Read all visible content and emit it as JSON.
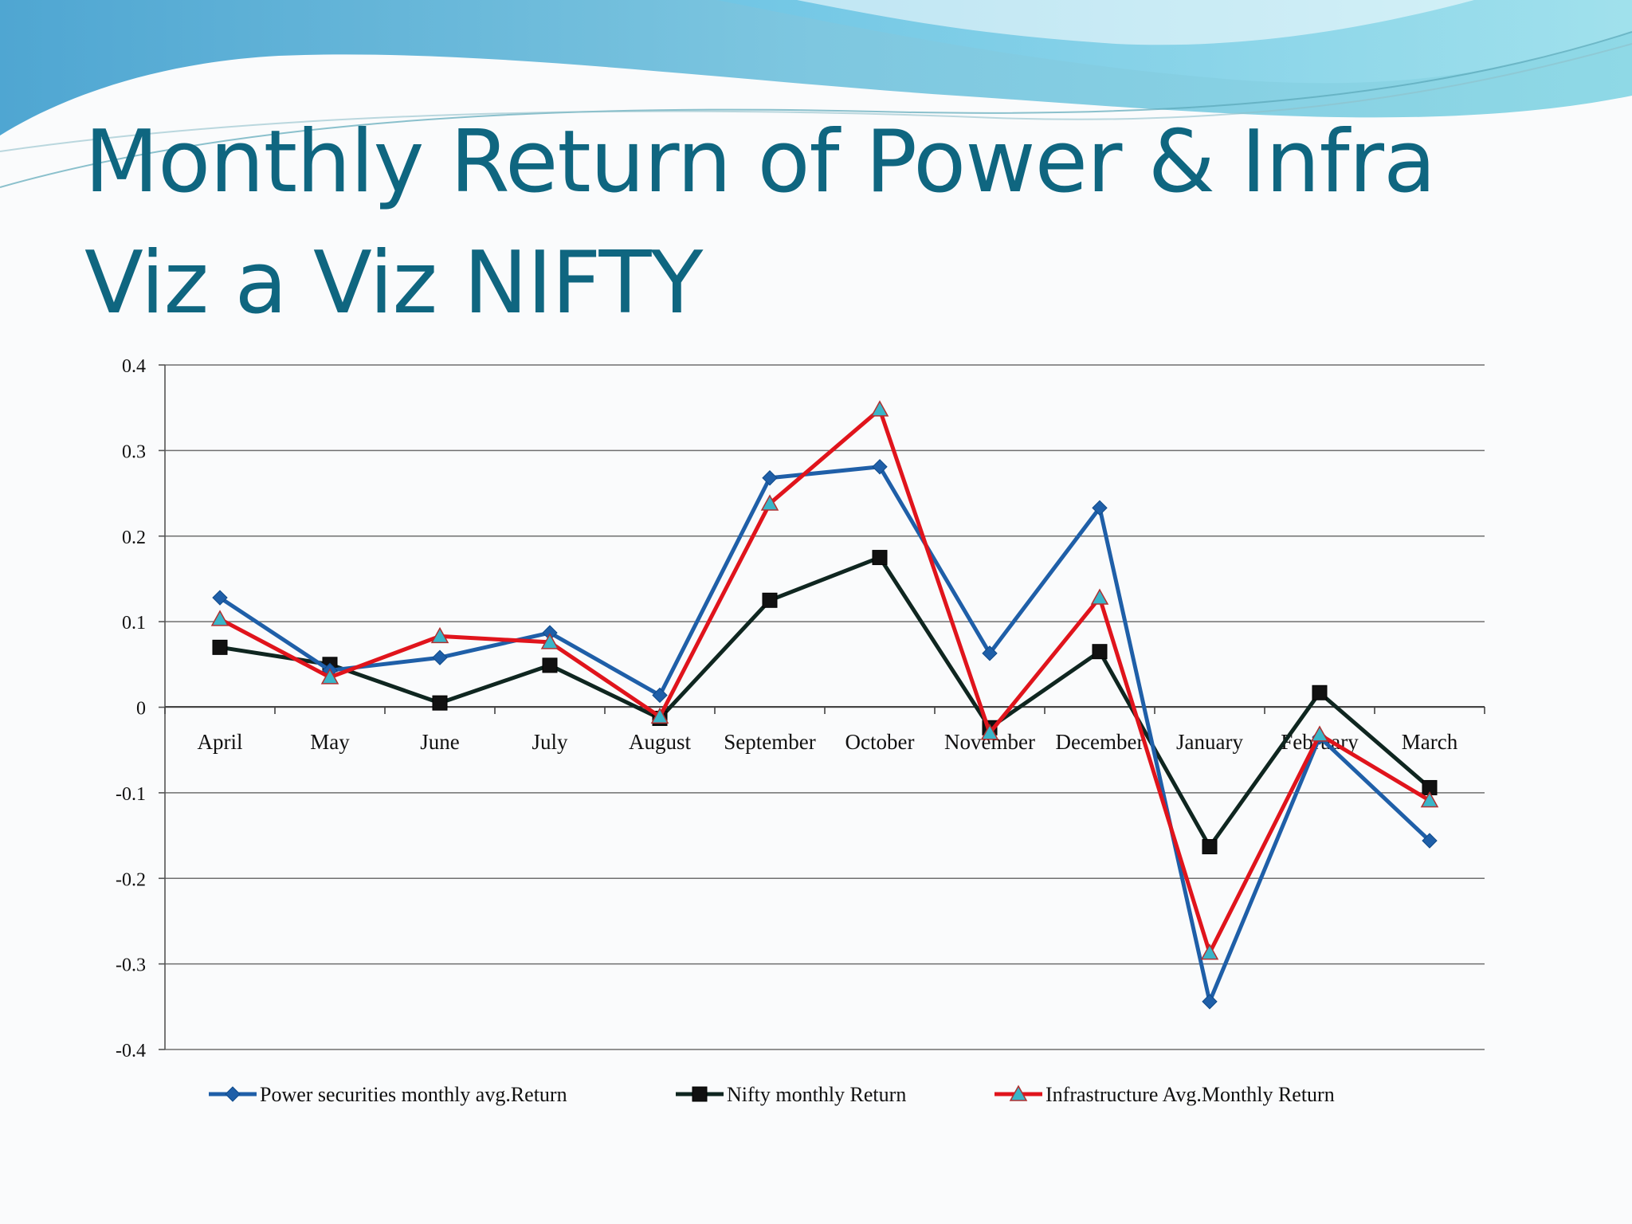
{
  "slide": {
    "title_line1": "Monthly Return of Power & Infra",
    "title_line2": "Viz a Viz NIFTY"
  },
  "chart_data": {
    "type": "line",
    "title": "",
    "xlabel": "",
    "ylabel": "",
    "ylim": [
      -0.4,
      0.4
    ],
    "yticks": [
      0.4,
      0.3,
      0.2,
      0.1,
      0,
      -0.1,
      -0.2,
      -0.3,
      -0.4
    ],
    "ytick_labels": [
      "0.4",
      "0.3",
      "0.2",
      "0.1",
      "0",
      "-0.1",
      "-0.2",
      "-0.3",
      "-0.4"
    ],
    "grid": true,
    "legend_position": "bottom",
    "categories": [
      "April",
      "May",
      "June",
      "July",
      "August",
      "September",
      "October",
      "November",
      "December",
      "January",
      "February",
      "March"
    ],
    "series": [
      {
        "name": "Power securities monthly avg.Return",
        "color": "#1f5fa8",
        "marker": "diamond",
        "values": [
          0.128,
          0.043,
          0.058,
          0.087,
          0.014,
          0.268,
          0.281,
          0.063,
          0.233,
          -0.344,
          -0.035,
          -0.156
        ]
      },
      {
        "name": "Nifty monthly Return",
        "color": "#0f2620",
        "marker": "square",
        "values": [
          0.07,
          0.05,
          0.005,
          0.049,
          -0.013,
          0.125,
          0.175,
          -0.024,
          0.065,
          -0.163,
          0.017,
          -0.094
        ]
      },
      {
        "name": "Infrastructure Avg.Monthly Return",
        "color": "#e0141c",
        "marker": "triangle",
        "marker_fill": "#3ab5c8",
        "values": [
          0.103,
          0.035,
          0.083,
          0.076,
          -0.011,
          0.238,
          0.348,
          -0.03,
          0.128,
          -0.287,
          -0.032,
          -0.109
        ]
      }
    ]
  }
}
